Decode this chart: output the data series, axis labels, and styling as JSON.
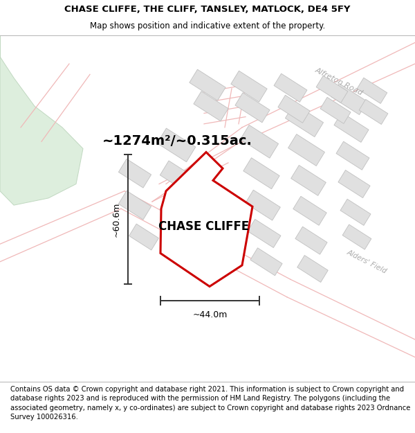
{
  "title_line1": "CHASE CLIFFE, THE CLIFF, TANSLEY, MATLOCK, DE4 5FY",
  "title_line2": "Map shows position and indicative extent of the property.",
  "footer_text": "Contains OS data © Crown copyright and database right 2021. This information is subject to Crown copyright and database rights 2023 and is reproduced with the permission of HM Land Registry. The polygons (including the associated geometry, namely x, y co-ordinates) are subject to Crown copyright and database rights 2023 Ordnance Survey 100026316.",
  "area_text": "~1274m²/~0.315ac.",
  "label_text": "CHASE CLIFFE",
  "dim_height": "~60.6m",
  "dim_width": "~44.0m",
  "road_label": "Alfreton Road",
  "field_label": "Alders' Field",
  "map_bg": "#ffffff",
  "property_fill": "#ffffff",
  "property_edge": "#cc0000",
  "road_color": "#f0b8b8",
  "road_edge_color": "#c8a0a0",
  "building_fill": "#e0e0e0",
  "building_edge": "#c0c0c0",
  "green_fill": "#ddeedd",
  "green_edge": "#c0d8c0",
  "dim_color": "#333333",
  "label_color": "#888888",
  "title_fontsize": 9.5,
  "subtitle_fontsize": 8.5,
  "footer_fontsize": 7.2,
  "area_fontsize": 14,
  "label_fontsize": 12,
  "dim_fontsize": 9,
  "road_label_fontsize": 8,
  "footer_bg": "#f0f0f0",
  "title_bg": "#f0f0f0"
}
